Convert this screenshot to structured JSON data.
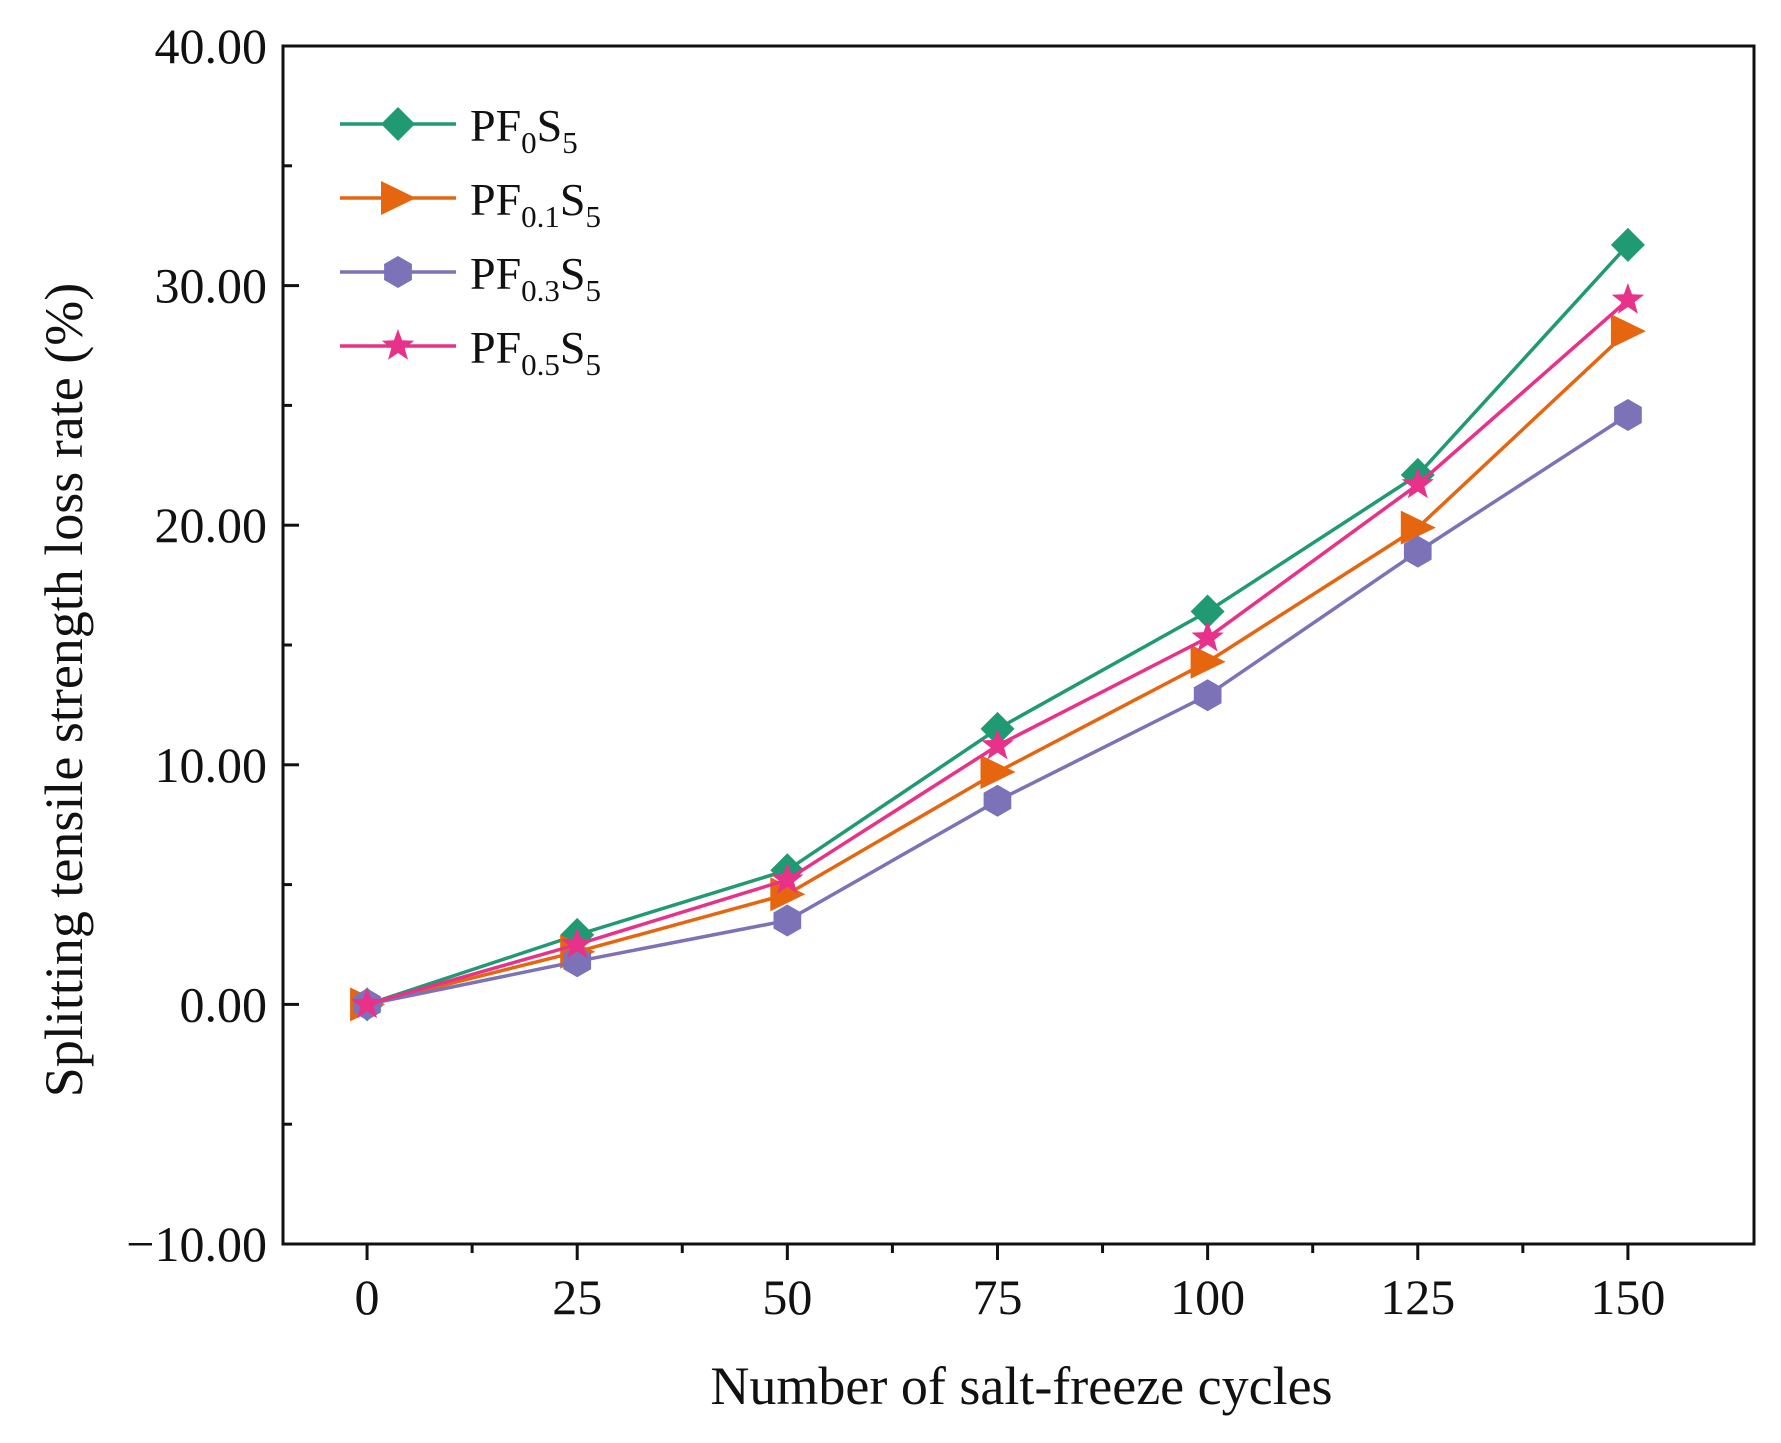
{
  "chart_data": {
    "type": "line",
    "title": "",
    "xlabel": "Number of salt-freeze cycles",
    "ylabel": "Splitting tensile strength loss rate (%)",
    "x": [
      0,
      25,
      50,
      75,
      100,
      125,
      150
    ],
    "x_tick_labels": [
      "0",
      "25",
      "50",
      "75",
      "100",
      "125",
      "150"
    ],
    "xlim": [
      -10,
      165
    ],
    "ylim": [
      -10,
      40
    ],
    "y_ticks": [
      -10,
      0,
      10,
      20,
      30,
      40
    ],
    "y_tick_labels": [
      "−10.00",
      "0.00",
      "10.00",
      "20.00",
      "30.00",
      "40.00"
    ],
    "grid": false,
    "legend_position": "top-left",
    "series": [
      {
        "name": "PF0S5",
        "label_parts": {
          "base": "PF",
          "sub1": "0",
          "mid": "S",
          "sub2": "5"
        },
        "color": "#1f9a72",
        "marker": "diamond",
        "values": [
          0,
          2.9,
          5.6,
          11.5,
          16.4,
          22.1,
          31.7
        ]
      },
      {
        "name": "PF0.1S5",
        "label_parts": {
          "base": "PF",
          "sub1": "0.1",
          "mid": "S",
          "sub2": "5"
        },
        "color": "#e6660f",
        "marker": "triangle-right",
        "values": [
          0,
          2.2,
          4.6,
          9.7,
          14.3,
          19.9,
          28.1
        ]
      },
      {
        "name": "PF0.3S5",
        "label_parts": {
          "base": "PF",
          "sub1": "0.3",
          "mid": "S",
          "sub2": "5"
        },
        "color": "#7b72b8",
        "marker": "hexagon",
        "values": [
          0,
          1.8,
          3.5,
          8.5,
          12.9,
          18.9,
          24.6
        ]
      },
      {
        "name": "PF0.5S5",
        "label_parts": {
          "base": "PF",
          "sub1": "0.5",
          "mid": "S",
          "sub2": "5"
        },
        "color": "#e8328a",
        "marker": "star",
        "values": [
          0,
          2.5,
          5.2,
          10.8,
          15.3,
          21.7,
          29.4
        ]
      }
    ]
  }
}
